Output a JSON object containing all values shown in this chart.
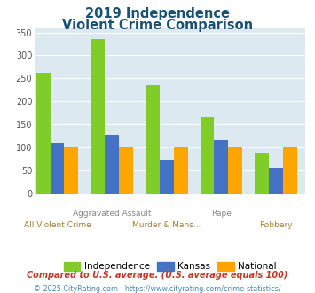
{
  "title_line1": "2019 Independence",
  "title_line2": "Violent Crime Comparison",
  "categories": [
    "All Violent Crime",
    "Aggravated Assault",
    "Murder & Mans...",
    "Rape",
    "Robbery"
  ],
  "series": {
    "Independence": [
      262,
      335,
      235,
      165,
      88
    ],
    "Kansas": [
      110,
      128,
      73,
      115,
      55
    ],
    "National": [
      100,
      100,
      100,
      100,
      100
    ]
  },
  "colors": {
    "Independence": "#80cc28",
    "Kansas": "#4472c4",
    "National": "#ffa500"
  },
  "ylim": [
    0,
    360
  ],
  "yticks": [
    0,
    50,
    100,
    150,
    200,
    250,
    300,
    350
  ],
  "background_color": "#dce9f0",
  "title_color": "#1a5276",
  "upper_label_color": "#888888",
  "lower_label_color": "#a08030",
  "footer_note": "Compared to U.S. average. (U.S. average equals 100)",
  "footer_credit": "© 2025 CityRating.com - https://www.cityrating.com/crime-statistics/",
  "footer_note_color": "#c0392b",
  "footer_credit_color": "#4488bb"
}
